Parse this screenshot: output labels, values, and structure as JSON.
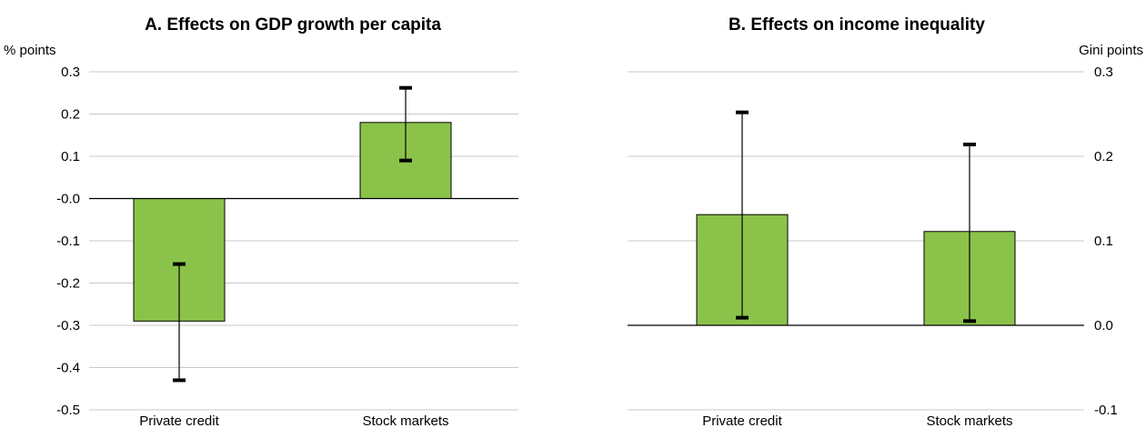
{
  "chart_data": [
    {
      "type": "bar",
      "title": "A. Effects on GDP growth per capita",
      "unit_label": "% points",
      "axis_side": "left",
      "categories": [
        "Private credit",
        "Stock markets"
      ],
      "values": [
        -0.29,
        0.18
      ],
      "error_low": [
        -0.43,
        0.09
      ],
      "error_high": [
        -0.155,
        0.262
      ],
      "ylim": [
        -0.5,
        0.3
      ],
      "yticks": [
        -0.5,
        -0.4,
        -0.3,
        -0.2,
        -0.1,
        0.0,
        0.1,
        0.2,
        0.3
      ],
      "ytick_labels": [
        "-0.5",
        "-0.4",
        "-0.3",
        "-0.2",
        "-0.1",
        "-0.0",
        "0.1",
        "0.2",
        "0.3"
      ],
      "grid": true,
      "bar_color": "#8bc34a"
    },
    {
      "type": "bar",
      "title": "B. Effects on income inequality",
      "unit_label": "Gini points",
      "axis_side": "right",
      "categories": [
        "Private credit",
        "Stock markets"
      ],
      "values": [
        0.131,
        0.111
      ],
      "error_low": [
        0.009,
        0.005
      ],
      "error_high": [
        0.252,
        0.214
      ],
      "ylim": [
        -0.1,
        0.3
      ],
      "yticks": [
        -0.1,
        0.0,
        0.1,
        0.2,
        0.3
      ],
      "ytick_labels": [
        "-0.1",
        "0.0",
        "0.1",
        "0.2",
        "0.3"
      ],
      "grid": true,
      "bar_color": "#8bc34a"
    }
  ]
}
